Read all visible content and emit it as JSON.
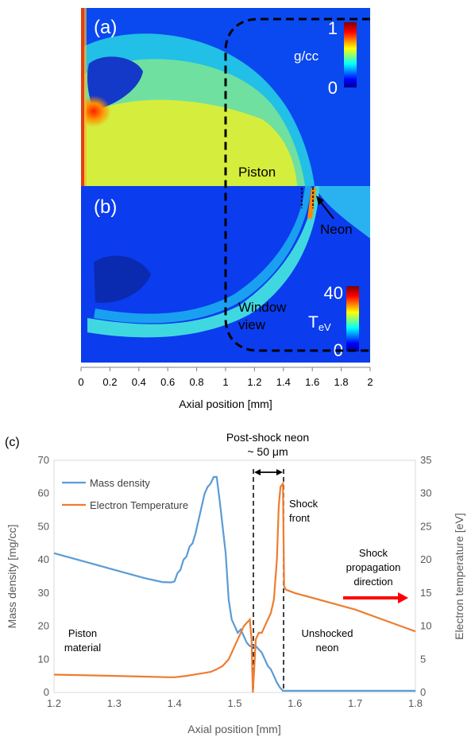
{
  "panel_a": {
    "label": "(a)",
    "colorbar_unit": "g/cc",
    "colorbar_max": "1",
    "colorbar_min": "0",
    "annotations": {
      "piston": "Piston"
    }
  },
  "panel_b": {
    "label": "(b)",
    "colorbar_unit_main": "T",
    "colorbar_unit_sub": "eV",
    "colorbar_max": "40",
    "colorbar_min": "0",
    "annotations": {
      "neon": "Neon",
      "window_1": "Window",
      "window_2": "view"
    }
  },
  "sim_axis": {
    "xlabel": "Axial position [mm]",
    "xlim": [
      0,
      2
    ],
    "ticks": [
      "0",
      "0.2",
      "0.4",
      "0.6",
      "0.8",
      "1",
      "1.2",
      "1.4",
      "1.6",
      "1.8",
      "2"
    ]
  },
  "chart_data": {
    "type": "line",
    "label": "(c)",
    "xlabel": "Axial position [mm]",
    "ylabel": "Mass density [mg/cc]",
    "y2label": "Electron temperature [eV]",
    "xlim": [
      1.2,
      1.8
    ],
    "ylim": [
      0,
      70
    ],
    "y2lim": [
      0,
      35
    ],
    "xticks": [
      "1.2",
      "1.3",
      "1.4",
      "1.5",
      "1.6",
      "1.7",
      "1.8"
    ],
    "yticks": [
      "0",
      "10",
      "20",
      "30",
      "40",
      "50",
      "60",
      "70"
    ],
    "y2ticks": [
      "0",
      "5",
      "10",
      "15",
      "20",
      "25",
      "30",
      "35"
    ],
    "legend_position": "top-left",
    "grid": false,
    "series": [
      {
        "name": "Mass density",
        "axis": "left",
        "color": "#5b9bd5",
        "x": [
          1.2,
          1.25,
          1.3,
          1.35,
          1.38,
          1.395,
          1.4,
          1.405,
          1.41,
          1.415,
          1.42,
          1.425,
          1.43,
          1.435,
          1.44,
          1.445,
          1.45,
          1.455,
          1.46,
          1.465,
          1.47,
          1.475,
          1.48,
          1.485,
          1.49,
          1.495,
          1.5,
          1.505,
          1.51,
          1.515,
          1.52,
          1.525,
          1.53,
          1.535,
          1.54,
          1.545,
          1.55,
          1.555,
          1.56,
          1.565,
          1.57,
          1.575,
          1.58,
          1.8
        ],
        "y": [
          42,
          39.5,
          37,
          34.5,
          33.3,
          33.2,
          33.5,
          36,
          37,
          40,
          41,
          44,
          45,
          48,
          52,
          56,
          60,
          62,
          63,
          65,
          65,
          58,
          50,
          42,
          28,
          22,
          20,
          18,
          19,
          17,
          15,
          14,
          14,
          14,
          13,
          12,
          10,
          8,
          7,
          5,
          3,
          1.5,
          0.5,
          0.5
        ]
      },
      {
        "name": "Electron Temperature",
        "axis": "right",
        "color": "#ed7d31",
        "x": [
          1.2,
          1.3,
          1.35,
          1.39,
          1.4,
          1.42,
          1.44,
          1.46,
          1.47,
          1.48,
          1.49,
          1.5,
          1.505,
          1.51,
          1.515,
          1.52,
          1.525,
          1.528,
          1.53,
          1.532,
          1.535,
          1.54,
          1.545,
          1.55,
          1.555,
          1.56,
          1.565,
          1.57,
          1.573,
          1.576,
          1.58,
          1.582,
          1.585,
          1.6,
          1.7,
          1.8
        ],
        "y": [
          2.7,
          2.5,
          2.4,
          2.3,
          2.3,
          2.5,
          2.8,
          3.1,
          3.5,
          4,
          5,
          7,
          8,
          9,
          10,
          10.5,
          11,
          8,
          0,
          3,
          8,
          9,
          9,
          10,
          11,
          12,
          14,
          20,
          28,
          31,
          31.5,
          16,
          15.5,
          15,
          12.5,
          9.2
        ]
      }
    ],
    "annotations": {
      "post_shock_1": "Post-shock neon",
      "post_shock_2": "~ 50 μm",
      "shock_front_1": "Shock",
      "shock_front_2": "front",
      "propagation_1": "Shock",
      "propagation_2": "propagation",
      "propagation_3": "direction",
      "piston_1": "Piston",
      "piston_2": "material",
      "unshocked_1": "Unshocked",
      "unshocked_2": "neon"
    }
  }
}
